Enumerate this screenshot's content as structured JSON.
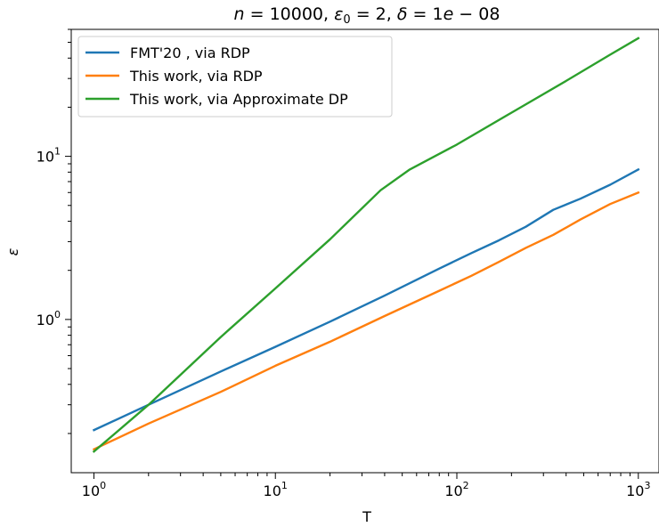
{
  "chart_data": {
    "type": "line",
    "title_parts": {
      "n_sym": "n",
      "n_eq": " = 10000, ",
      "eps_sym": "ε",
      "eps_sub": "0",
      "eps_eq": " = 2, ",
      "delta_sym": "δ",
      "delta_eq": " = 1",
      "e_sym": "e",
      "tail": " − 08"
    },
    "xlabel": "T",
    "ylabel": "ε",
    "xscale": "log",
    "yscale": "log",
    "xlim": [
      0.75,
      1300.0
    ],
    "ylim": [
      0.115,
      60
    ],
    "x_ticks": [
      {
        "value": 1,
        "base": "10",
        "exp": "0"
      },
      {
        "value": 10,
        "base": "10",
        "exp": "1"
      },
      {
        "value": 100,
        "base": "10",
        "exp": "2"
      },
      {
        "value": 1000,
        "base": "10",
        "exp": "3"
      }
    ],
    "y_ticks": [
      {
        "value": 1,
        "base": "10",
        "exp": "0"
      },
      {
        "value": 10,
        "base": "10",
        "exp": "1"
      }
    ],
    "legend_position": "upper-left",
    "series": [
      {
        "name": "FMT'20 , via RDP",
        "color": "#1f77b4",
        "x": [
          1,
          2,
          5,
          10,
          20,
          40,
          80,
          120,
          170,
          240,
          340,
          480,
          700,
          1000
        ],
        "y": [
          0.21,
          0.3,
          0.48,
          0.68,
          0.97,
          1.4,
          2.05,
          2.55,
          3.05,
          3.7,
          4.7,
          5.5,
          6.7,
          8.3
        ]
      },
      {
        "name": "This work, via RDP",
        "color": "#ff7f0e",
        "x": [
          1,
          2,
          5,
          10,
          20,
          40,
          80,
          120,
          170,
          240,
          340,
          480,
          700,
          1000
        ],
        "y": [
          0.16,
          0.23,
          0.36,
          0.52,
          0.73,
          1.05,
          1.5,
          1.85,
          2.25,
          2.75,
          3.3,
          4.1,
          5.1,
          6.0
        ]
      },
      {
        "name": "This work, via Approximate DP",
        "color": "#2ca02c",
        "x": [
          1,
          2,
          5,
          10,
          20,
          38,
          55,
          100,
          200,
          400,
          700,
          1000
        ],
        "y": [
          0.155,
          0.3,
          0.78,
          1.55,
          3.1,
          6.2,
          8.3,
          11.8,
          18.5,
          29.0,
          42.0,
          53.0
        ]
      }
    ]
  }
}
